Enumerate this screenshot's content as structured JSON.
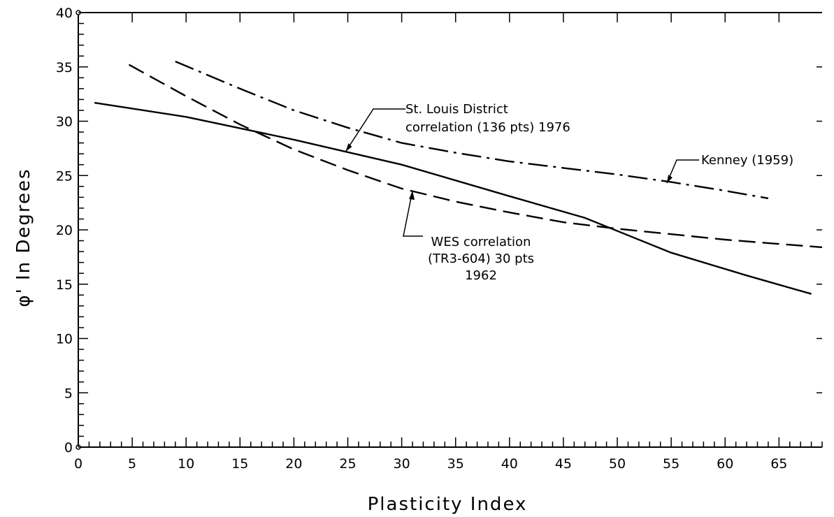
{
  "chart_data": {
    "type": "line",
    "title": "",
    "xlabel": "Plasticity Index",
    "ylabel": "φ' In Degrees",
    "xlim": [
      0,
      69
    ],
    "ylim": [
      0,
      40
    ],
    "x_ticks": [
      0,
      5,
      10,
      15,
      20,
      25,
      30,
      35,
      40,
      45,
      50,
      55,
      60,
      65
    ],
    "y_ticks": [
      0,
      5,
      10,
      15,
      20,
      25,
      30,
      35,
      40
    ],
    "grid": false,
    "series": [
      {
        "name": "St. Louis District correlation (136 pts) 1976",
        "style": "solid",
        "x": [
          1.5,
          10,
          20,
          30,
          40,
          47,
          55,
          62,
          68
        ],
        "y": [
          31.7,
          30.4,
          28.3,
          26,
          23.1,
          21.1,
          17.9,
          15.8,
          14.1
        ]
      },
      {
        "name": "WES correlation (TR3-604) 30 pts 1962",
        "style": "dashed",
        "x": [
          4.7,
          10,
          15,
          20,
          25,
          30,
          35,
          40,
          45,
          50,
          55,
          60,
          65,
          69
        ],
        "y": [
          35.2,
          32.3,
          29.7,
          27.4,
          25.5,
          23.8,
          22.6,
          21.6,
          20.7,
          20.1,
          19.6,
          19.1,
          18.7,
          18.4
        ]
      },
      {
        "name": "Kenney (1959)",
        "style": "dash-dot",
        "x": [
          9,
          15,
          20,
          25,
          30,
          35,
          40,
          45,
          50,
          55,
          60,
          64
        ],
        "y": [
          35.5,
          33,
          31,
          29.4,
          28,
          27.1,
          26.3,
          25.7,
          25.1,
          24.4,
          23.6,
          22.9
        ]
      }
    ],
    "annotations": [
      {
        "id": "stl",
        "lines": [
          "St. Louis District",
          "correlation (136 pts) 1976"
        ]
      },
      {
        "id": "wes",
        "lines": [
          "WES correlation",
          "(TR3-604) 30 pts",
          "1962"
        ]
      },
      {
        "id": "kenney",
        "lines": [
          "Kenney (1959)"
        ]
      }
    ]
  }
}
